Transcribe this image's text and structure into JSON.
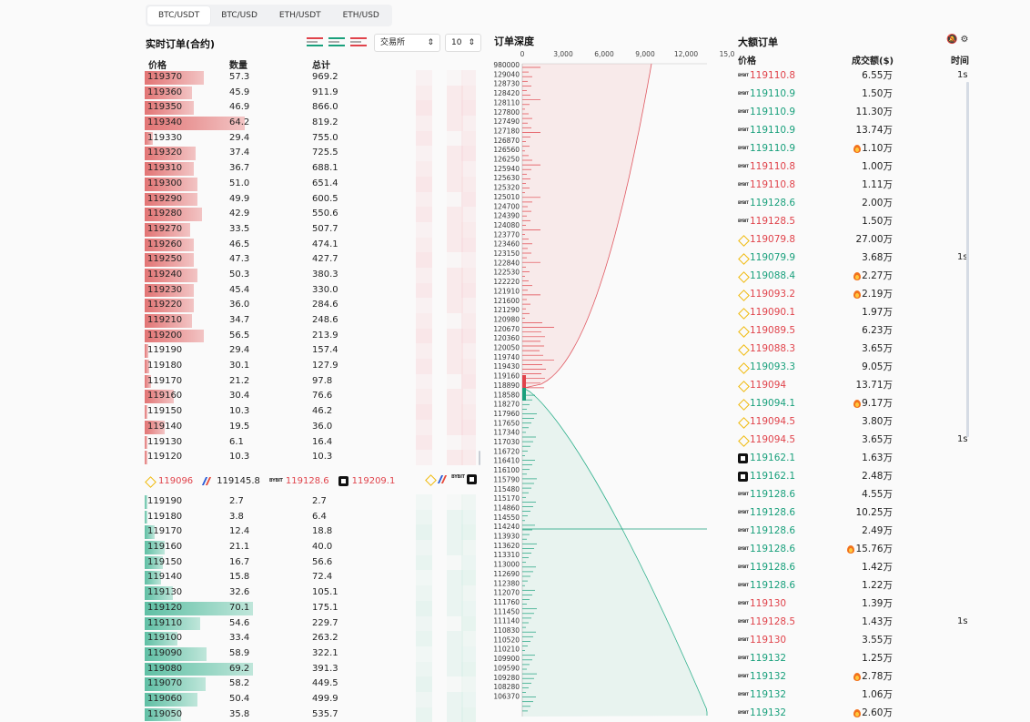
{
  "tabs": [
    "BTC/USDT",
    "BTC/USD",
    "ETH/USDT",
    "ETH/USD"
  ],
  "order_book": {
    "title": "实时订单(合约)",
    "exchange_select": "交易所",
    "depth_select": "10",
    "headers": {
      "price": "价格",
      "qty": "数量",
      "total": "总计"
    },
    "asks": [
      {
        "price": "119370",
        "qty": "57.3",
        "total": "969.2",
        "bar": 0.36
      },
      {
        "price": "119360",
        "qty": "45.9",
        "total": "911.9",
        "bar": 0.29
      },
      {
        "price": "119350",
        "qty": "46.9",
        "total": "866.0",
        "bar": 0.3
      },
      {
        "price": "119340",
        "qty": "64.2",
        "total": "819.2",
        "bar": 0.61
      },
      {
        "price": "119330",
        "qty": "29.4",
        "total": "755.0",
        "bar": 0.05
      },
      {
        "price": "119320",
        "qty": "37.4",
        "total": "725.5",
        "bar": 0.31
      },
      {
        "price": "119310",
        "qty": "36.7",
        "total": "688.1",
        "bar": 0.3
      },
      {
        "price": "119300",
        "qty": "51.0",
        "total": "651.4",
        "bar": 0.32
      },
      {
        "price": "119290",
        "qty": "49.9",
        "total": "600.5",
        "bar": 0.32
      },
      {
        "price": "119280",
        "qty": "42.9",
        "total": "550.6",
        "bar": 0.35
      },
      {
        "price": "119270",
        "qty": "33.5",
        "total": "507.7",
        "bar": 0.28
      },
      {
        "price": "119260",
        "qty": "46.5",
        "total": "474.1",
        "bar": 0.3
      },
      {
        "price": "119250",
        "qty": "47.3",
        "total": "427.7",
        "bar": 0.3
      },
      {
        "price": "119240",
        "qty": "50.3",
        "total": "380.3",
        "bar": 0.32
      },
      {
        "price": "119230",
        "qty": "45.4",
        "total": "330.0",
        "bar": 0.3
      },
      {
        "price": "119220",
        "qty": "36.0",
        "total": "284.6",
        "bar": 0.3
      },
      {
        "price": "119210",
        "qty": "34.7",
        "total": "248.6",
        "bar": 0.29
      },
      {
        "price": "119200",
        "qty": "56.5",
        "total": "213.9",
        "bar": 0.36
      },
      {
        "price": "119190",
        "qty": "29.4",
        "total": "157.4",
        "bar": 0.02
      },
      {
        "price": "119180",
        "qty": "30.1",
        "total": "127.9",
        "bar": 0.03
      },
      {
        "price": "119170",
        "qty": "21.2",
        "total": "97.8",
        "bar": 0.04
      },
      {
        "price": "119160",
        "qty": "30.4",
        "total": "76.6",
        "bar": 0.18
      },
      {
        "price": "119150",
        "qty": "10.3",
        "total": "46.2",
        "bar": 0.01
      },
      {
        "price": "119140",
        "qty": "19.5",
        "total": "36.0",
        "bar": 0.12
      },
      {
        "price": "119130",
        "qty": "6.1",
        "total": "16.4",
        "bar": 0.01
      },
      {
        "price": "119120",
        "qty": "10.3",
        "total": "10.3",
        "bar": 0.01
      }
    ],
    "mid": {
      "binance": "119096",
      "coinbase": "119145.8",
      "bybit": "119128.6",
      "okx": "119209.1"
    },
    "bids": [
      {
        "price": "119190",
        "qty": "2.7",
        "total": "2.7",
        "bar": 0.01
      },
      {
        "price": "119180",
        "qty": "3.8",
        "total": "6.4",
        "bar": 0.01
      },
      {
        "price": "119170",
        "qty": "12.4",
        "total": "18.8",
        "bar": 0.06
      },
      {
        "price": "119160",
        "qty": "21.1",
        "total": "40.0",
        "bar": 0.12
      },
      {
        "price": "119150",
        "qty": "16.7",
        "total": "56.6",
        "bar": 0.11
      },
      {
        "price": "119140",
        "qty": "15.8",
        "total": "72.4",
        "bar": 0.1
      },
      {
        "price": "119130",
        "qty": "32.6",
        "total": "105.1",
        "bar": 0.17
      },
      {
        "price": "119120",
        "qty": "70.1",
        "total": "175.1",
        "bar": 0.66
      },
      {
        "price": "119110",
        "qty": "54.6",
        "total": "229.7",
        "bar": 0.34
      },
      {
        "price": "119100",
        "qty": "33.4",
        "total": "263.2",
        "bar": 0.2
      },
      {
        "price": "119090",
        "qty": "58.9",
        "total": "322.1",
        "bar": 0.38
      },
      {
        "price": "119080",
        "qty": "69.2",
        "total": "391.3",
        "bar": 0.66
      },
      {
        "price": "119070",
        "qty": "58.2",
        "total": "449.5",
        "bar": 0.37
      },
      {
        "price": "119060",
        "qty": "50.4",
        "total": "499.9",
        "bar": 0.32
      },
      {
        "price": "119050",
        "qty": "35.8",
        "total": "535.7",
        "bar": 0.22
      }
    ]
  },
  "depth_chart": {
    "title": "订单深度",
    "x_ticks": [
      "0",
      "3,000",
      "6,000",
      "9,000",
      "12,000",
      "15,0"
    ],
    "y_labels": [
      "980000",
      "129040",
      "128730",
      "128420",
      "128110",
      "127800",
      "127490",
      "127180",
      "126870",
      "126560",
      "126250",
      "125940",
      "125630",
      "125320",
      "125010",
      "124700",
      "124390",
      "124080",
      "123770",
      "123460",
      "123150",
      "122840",
      "122530",
      "122220",
      "121910",
      "121600",
      "121290",
      "120980",
      "120670",
      "120360",
      "120050",
      "119740",
      "119430",
      "119160",
      "118890",
      "118580",
      "118270",
      "117960",
      "117650",
      "117340",
      "117030",
      "116720",
      "116410",
      "116100",
      "115790",
      "115480",
      "115170",
      "114860",
      "114550",
      "114240",
      "113930",
      "113620",
      "113310",
      "113000",
      "112690",
      "112380",
      "112070",
      "111760",
      "111450",
      "111140",
      "110830",
      "110520",
      "110210",
      "109900",
      "109590",
      "109280",
      "108280",
      "106370"
    ]
  },
  "large_orders": {
    "title": "大额订单",
    "headers": {
      "price": "价格",
      "amount": "成交额($)",
      "time": "时间"
    },
    "rows": [
      {
        "ex": "bybit",
        "price": "119110.8",
        "side": "red",
        "amount": "6.55万",
        "fire": false,
        "time": "1s"
      },
      {
        "ex": "bybit",
        "price": "119110.9",
        "side": "green",
        "amount": "1.50万",
        "fire": false,
        "time": ""
      },
      {
        "ex": "bybit",
        "price": "119110.9",
        "side": "green",
        "amount": "11.30万",
        "fire": false,
        "time": ""
      },
      {
        "ex": "bybit",
        "price": "119110.9",
        "side": "green",
        "amount": "13.74万",
        "fire": false,
        "time": ""
      },
      {
        "ex": "bybit",
        "price": "119110.9",
        "side": "green",
        "amount": "1.10万",
        "fire": true,
        "time": ""
      },
      {
        "ex": "bybit",
        "price": "119110.8",
        "side": "red",
        "amount": "1.00万",
        "fire": false,
        "time": ""
      },
      {
        "ex": "bybit",
        "price": "119110.8",
        "side": "red",
        "amount": "1.11万",
        "fire": false,
        "time": ""
      },
      {
        "ex": "bybit",
        "price": "119128.6",
        "side": "green",
        "amount": "2.00万",
        "fire": false,
        "time": ""
      },
      {
        "ex": "bybit",
        "price": "119128.5",
        "side": "red",
        "amount": "1.50万",
        "fire": false,
        "time": ""
      },
      {
        "ex": "binance",
        "price": "119079.8",
        "side": "red",
        "amount": "27.00万",
        "fire": false,
        "time": ""
      },
      {
        "ex": "binance",
        "price": "119079.9",
        "side": "green",
        "amount": "3.68万",
        "fire": false,
        "time": "1s"
      },
      {
        "ex": "binance",
        "price": "119088.4",
        "side": "green",
        "amount": "2.27万",
        "fire": true,
        "time": ""
      },
      {
        "ex": "binance",
        "price": "119093.2",
        "side": "red",
        "amount": "2.19万",
        "fire": true,
        "time": ""
      },
      {
        "ex": "binance",
        "price": "119090.1",
        "side": "red",
        "amount": "1.97万",
        "fire": false,
        "time": ""
      },
      {
        "ex": "binance",
        "price": "119089.5",
        "side": "red",
        "amount": "6.23万",
        "fire": false,
        "time": ""
      },
      {
        "ex": "binance",
        "price": "119088.3",
        "side": "red",
        "amount": "3.65万",
        "fire": false,
        "time": ""
      },
      {
        "ex": "binance",
        "price": "119093.3",
        "side": "green",
        "amount": "9.05万",
        "fire": false,
        "time": ""
      },
      {
        "ex": "binance",
        "price": "119094",
        "side": "red",
        "amount": "13.71万",
        "fire": false,
        "time": ""
      },
      {
        "ex": "binance",
        "price": "119094.1",
        "side": "green",
        "amount": "9.17万",
        "fire": true,
        "time": ""
      },
      {
        "ex": "binance",
        "price": "119094.5",
        "side": "red",
        "amount": "3.80万",
        "fire": false,
        "time": ""
      },
      {
        "ex": "binance",
        "price": "119094.5",
        "side": "red",
        "amount": "3.65万",
        "fire": false,
        "time": "1s"
      },
      {
        "ex": "okx",
        "price": "119162.1",
        "side": "green",
        "amount": "1.63万",
        "fire": false,
        "time": ""
      },
      {
        "ex": "okx",
        "price": "119162.1",
        "side": "green",
        "amount": "2.48万",
        "fire": false,
        "time": ""
      },
      {
        "ex": "bybit",
        "price": "119128.6",
        "side": "green",
        "amount": "4.55万",
        "fire": false,
        "time": ""
      },
      {
        "ex": "bybit",
        "price": "119128.6",
        "side": "green",
        "amount": "10.25万",
        "fire": false,
        "time": ""
      },
      {
        "ex": "bybit",
        "price": "119128.6",
        "side": "green",
        "amount": "2.49万",
        "fire": false,
        "time": ""
      },
      {
        "ex": "bybit",
        "price": "119128.6",
        "side": "green",
        "amount": "15.76万",
        "fire": true,
        "time": ""
      },
      {
        "ex": "bybit",
        "price": "119128.6",
        "side": "green",
        "amount": "1.42万",
        "fire": false,
        "time": ""
      },
      {
        "ex": "bybit",
        "price": "119128.6",
        "side": "green",
        "amount": "1.22万",
        "fire": false,
        "time": ""
      },
      {
        "ex": "bybit",
        "price": "119130",
        "side": "red",
        "amount": "1.39万",
        "fire": false,
        "time": ""
      },
      {
        "ex": "bybit",
        "price": "119128.5",
        "side": "red",
        "amount": "1.43万",
        "fire": false,
        "time": "1s"
      },
      {
        "ex": "bybit",
        "price": "119130",
        "side": "red",
        "amount": "3.55万",
        "fire": false,
        "time": ""
      },
      {
        "ex": "bybit",
        "price": "119132",
        "side": "green",
        "amount": "1.25万",
        "fire": false,
        "time": ""
      },
      {
        "ex": "bybit",
        "price": "119132",
        "side": "green",
        "amount": "2.78万",
        "fire": true,
        "time": ""
      },
      {
        "ex": "bybit",
        "price": "119132",
        "side": "green",
        "amount": "1.06万",
        "fire": false,
        "time": ""
      },
      {
        "ex": "bybit",
        "price": "119132",
        "side": "green",
        "amount": "2.60万",
        "fire": true,
        "time": ""
      }
    ]
  },
  "colors": {
    "ask": "#e0434b",
    "bid": "#19a07c",
    "ask_bar": "#e98e8e",
    "bid_bar": "#7fcbb6"
  }
}
